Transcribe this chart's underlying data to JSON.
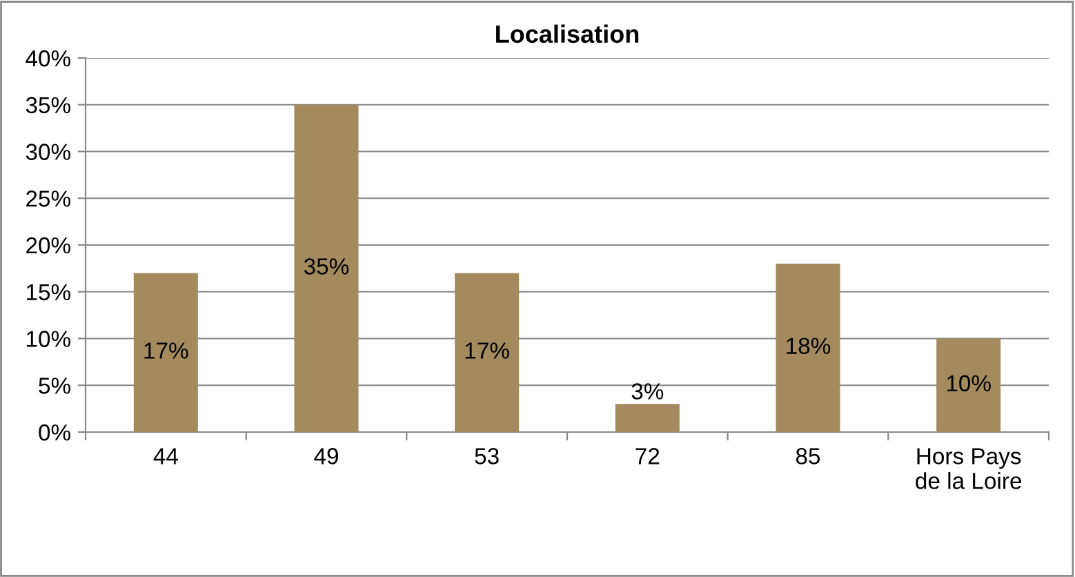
{
  "chart_data": {
    "type": "bar",
    "title": "Localisation",
    "categories": [
      "44",
      "49",
      "53",
      "72",
      "85",
      "Hors Pays\nde la Loire"
    ],
    "values": [
      17,
      35,
      17,
      3,
      18,
      10
    ],
    "value_labels": [
      "17%",
      "35%",
      "17%",
      "3%",
      "18%",
      "10%"
    ],
    "color": "#a58a60",
    "ylim": [
      0,
      40
    ],
    "yticks": [
      {
        "value": 0,
        "label": "0%"
      },
      {
        "value": 5,
        "label": "5%"
      },
      {
        "value": 10,
        "label": "10%"
      },
      {
        "value": 15,
        "label": "15%"
      },
      {
        "value": 20,
        "label": "20%"
      },
      {
        "value": 25,
        "label": "25%"
      },
      {
        "value": 30,
        "label": "30%"
      },
      {
        "value": 35,
        "label": "35%"
      },
      {
        "value": 40,
        "label": "40%"
      }
    ],
    "grid": "y"
  }
}
